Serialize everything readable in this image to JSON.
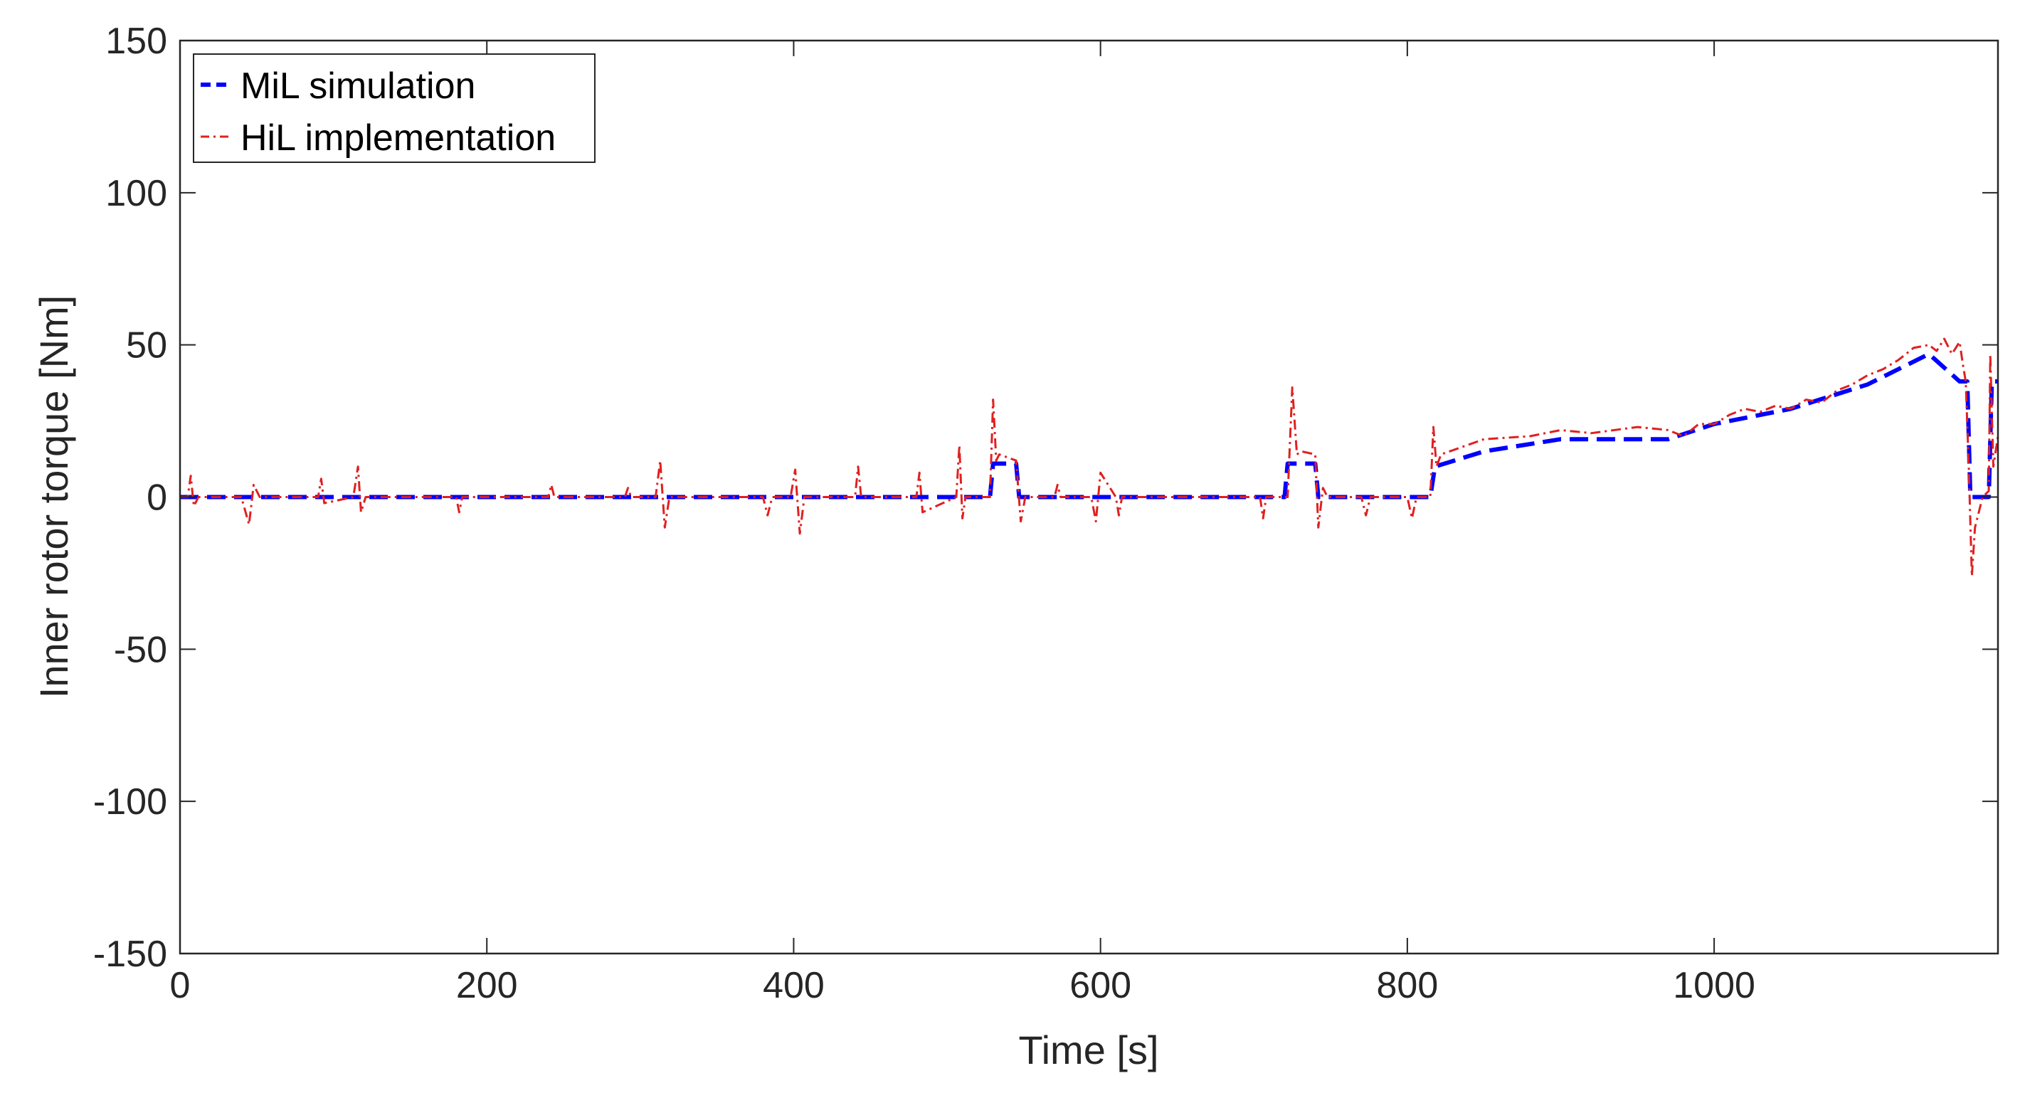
{
  "chart_data": {
    "type": "line",
    "title": "",
    "xlabel": "Time [s]",
    "ylabel": "Inner rotor torque [Nm]",
    "xlim": [
      0,
      1185
    ],
    "ylim": [
      -150,
      150
    ],
    "xticks": [
      0,
      200,
      400,
      600,
      800,
      1000
    ],
    "xtick_labels": [
      "0",
      "200",
      "400",
      "600",
      "800",
      "1000"
    ],
    "yticks": [
      -150,
      -100,
      -50,
      0,
      50,
      100,
      150
    ],
    "ytick_labels": [
      "-150",
      "-100",
      "-50",
      "0",
      "50",
      "100",
      "150"
    ],
    "grid": false,
    "legend_position": "top-left",
    "series": [
      {
        "name": "MiL simulation",
        "color": "#0000ff",
        "style": "dashed",
        "x": [
          0,
          528,
          530,
          545,
          547,
          720,
          722,
          740,
          742,
          815,
          818,
          850,
          900,
          970,
          1000,
          1050,
          1100,
          1140,
          1160,
          1165,
          1167,
          1179,
          1181,
          1185
        ],
        "y": [
          0,
          0,
          11,
          11,
          0,
          0,
          11,
          11,
          0,
          0,
          10,
          15,
          19,
          19,
          24,
          29,
          37,
          47,
          38,
          38,
          0,
          0,
          38,
          38
        ]
      },
      {
        "name": "HiL implementation",
        "color": "#e02020",
        "style": "dash-dot",
        "x": [
          0,
          5,
          7,
          9,
          12,
          40,
          45,
          48,
          52,
          90,
          92,
          94,
          113,
          116,
          118,
          121,
          180,
          182,
          184,
          240,
          242,
          244,
          290,
          292,
          294,
          310,
          313,
          316,
          319,
          380,
          383,
          386,
          398,
          401,
          404,
          407,
          440,
          442,
          444,
          480,
          482,
          484,
          506,
          508,
          510,
          512,
          528,
          530,
          532,
          534,
          545,
          548,
          551,
          570,
          572,
          574,
          594,
          597,
          600,
          610,
          612,
          614,
          704,
          706,
          708,
          722,
          725,
          728,
          731,
          740,
          742,
          745,
          748,
          770,
          773,
          776,
          800,
          803,
          806,
          815,
          817,
          819,
          822,
          850,
          880,
          900,
          920,
          950,
          970,
          980,
          990,
          1000,
          1010,
          1020,
          1030,
          1040,
          1050,
          1060,
          1070,
          1080,
          1090,
          1100,
          1110,
          1120,
          1130,
          1140,
          1145,
          1150,
          1155,
          1160,
          1162,
          1164,
          1166,
          1168,
          1170,
          1175,
          1179,
          1180,
          1182,
          1185
        ],
        "y": [
          0,
          0,
          7,
          -3,
          0,
          0,
          -9,
          4,
          0,
          0,
          6,
          -2,
          0,
          10,
          -5,
          0,
          0,
          -5,
          0,
          0,
          4,
          0,
          0,
          3,
          0,
          0,
          12,
          -10,
          0,
          0,
          -6,
          0,
          0,
          9,
          -12,
          0,
          0,
          10,
          0,
          0,
          8,
          -5,
          0,
          17,
          -7,
          0,
          0,
          32,
          12,
          14,
          12,
          -8,
          0,
          0,
          4,
          0,
          0,
          -8,
          8,
          0,
          -6,
          0,
          0,
          -7,
          0,
          0,
          36,
          14,
          15,
          14,
          -10,
          3,
          0,
          0,
          -6,
          0,
          0,
          -7,
          0,
          0,
          23,
          10,
          14,
          19,
          20,
          22,
          21,
          23,
          22,
          20,
          24,
          24,
          27,
          29,
          28,
          30,
          29,
          32,
          31,
          35,
          37,
          40,
          42,
          45,
          49,
          50,
          48,
          52,
          47,
          51,
          44,
          38,
          10,
          -26,
          -10,
          0,
          2,
          47,
          10,
          20
        ]
      }
    ]
  }
}
